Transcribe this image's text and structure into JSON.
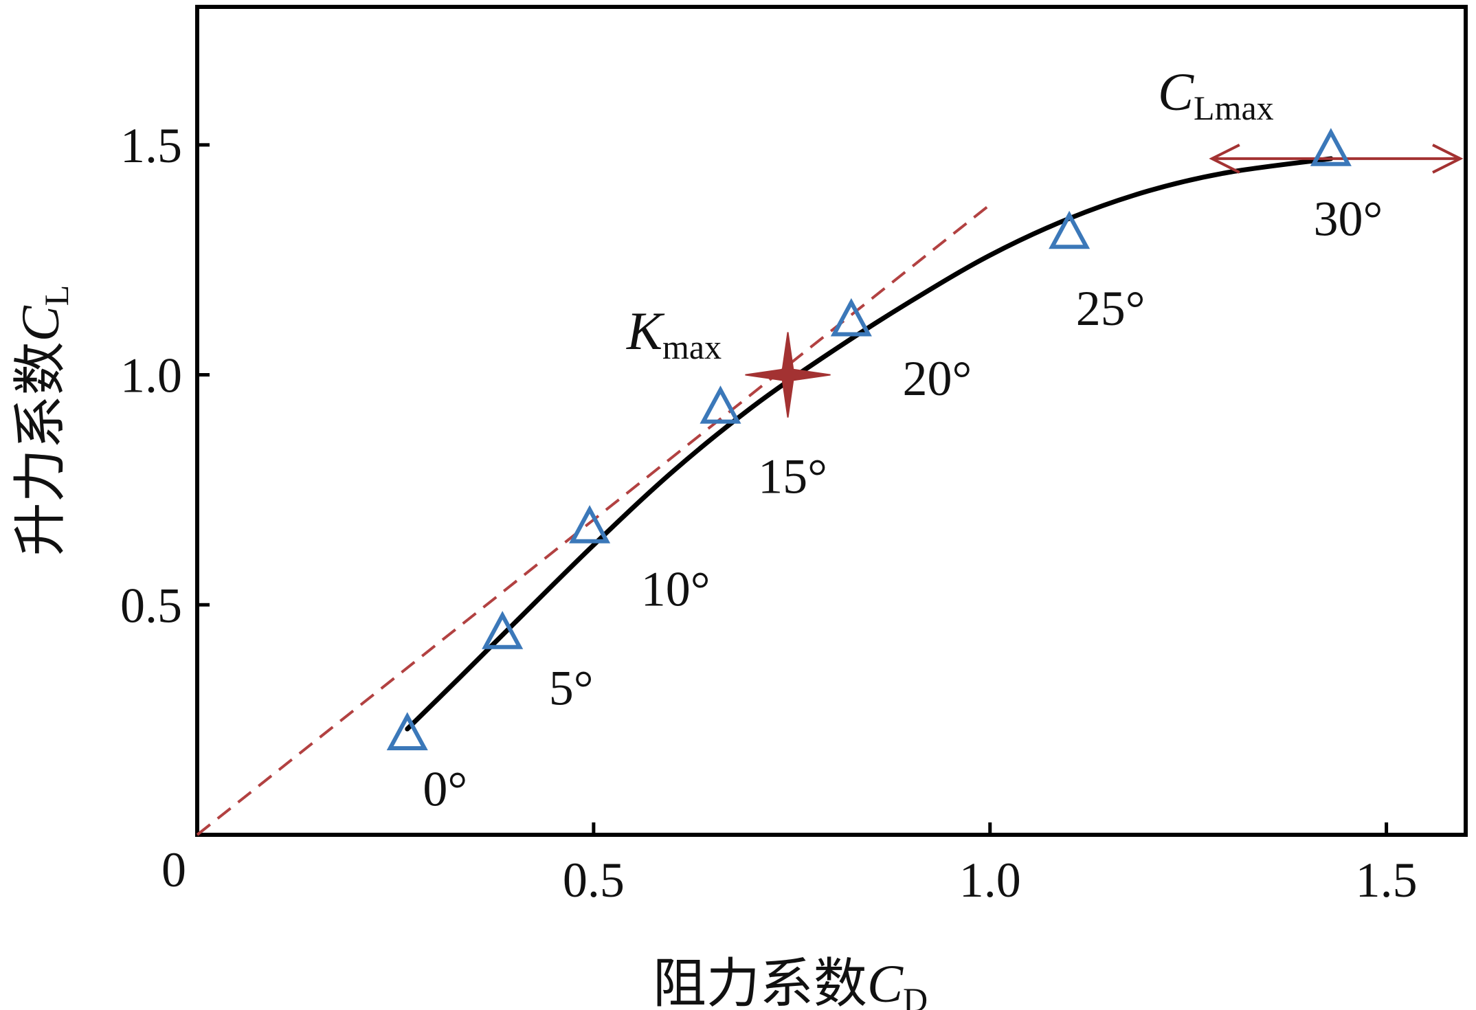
{
  "chart_data": {
    "type": "scatter",
    "xlabel": {
      "prefix": "阻力系数",
      "symbol": "C",
      "subscript": "D"
    },
    "ylabel": {
      "prefix": "升力系数",
      "symbol": "C",
      "subscript": "L"
    },
    "xlim": [
      0,
      1.6
    ],
    "ylim": [
      0,
      1.8
    ],
    "x_ticks": [
      0.5,
      1.0,
      1.5
    ],
    "x_tick_labels": [
      "0.5",
      "1.0",
      "1.5"
    ],
    "y_ticks": [
      0.5,
      1.0,
      1.5
    ],
    "y_tick_labels": [
      "0.5",
      "1.0",
      "1.5"
    ],
    "origin_label": "0",
    "grid": false,
    "points": [
      {
        "angle": "0°",
        "x": 0.265,
        "y": 0.22
      },
      {
        "angle": "5°",
        "x": 0.385,
        "y": 0.44
      },
      {
        "angle": "10°",
        "x": 0.495,
        "y": 0.67
      },
      {
        "angle": "15°",
        "x": 0.66,
        "y": 0.93
      },
      {
        "angle": "20°",
        "x": 0.825,
        "y": 1.12
      },
      {
        "angle": "25°",
        "x": 1.1,
        "y": 1.31
      },
      {
        "angle": "30°",
        "x": 1.43,
        "y": 1.49
      }
    ],
    "fit_curve": [
      {
        "x": 0.265,
        "y": 0.23
      },
      {
        "x": 0.33,
        "y": 0.34
      },
      {
        "x": 0.4,
        "y": 0.46
      },
      {
        "x": 0.5,
        "y": 0.63
      },
      {
        "x": 0.6,
        "y": 0.79
      },
      {
        "x": 0.7,
        "y": 0.93
      },
      {
        "x": 0.8,
        "y": 1.05
      },
      {
        "x": 0.9,
        "y": 1.16
      },
      {
        "x": 1.0,
        "y": 1.26
      },
      {
        "x": 1.1,
        "y": 1.34
      },
      {
        "x": 1.2,
        "y": 1.4
      },
      {
        "x": 1.3,
        "y": 1.44
      },
      {
        "x": 1.43,
        "y": 1.47
      }
    ],
    "tangent_line": {
      "from": [
        0,
        0
      ],
      "to": [
        1.0,
        1.37
      ]
    },
    "kmax_point": {
      "x": 0.745,
      "y": 1.0,
      "label_symbol": "K",
      "label_subscript": "max"
    },
    "clmax_marker": {
      "y": 1.47,
      "x_from": 1.28,
      "x_to": 1.6,
      "label_symbol": "C",
      "label_subscript": "Lmax"
    },
    "colors": {
      "points": "#3b78b9",
      "curve": "#000000",
      "tangent": "#b24141",
      "star": "#a33232",
      "arrow": "#a33232",
      "frame": "#000000"
    }
  }
}
